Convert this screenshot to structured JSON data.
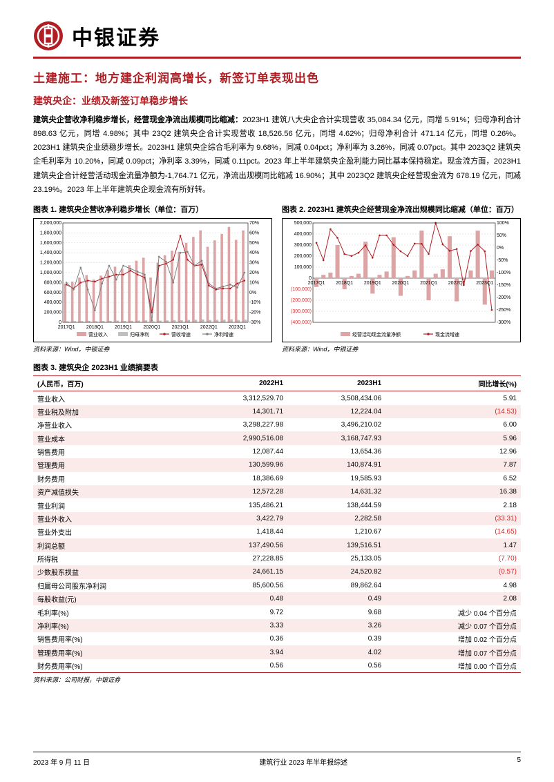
{
  "header": {
    "company": "中银证券"
  },
  "title": "土建施工：地方建企利润高增长，新签订单表现出色",
  "subtitle": "建筑央企：业绩及新签订单稳步增长",
  "body_bold": "建筑央企营收净利稳步增长，经营现金净流出规模同比缩减：",
  "body_rest": "2023H1 建筑八大央企合计实现营收 35,084.34 亿元，同增 5.91%；归母净利合计 898.63 亿元，同增 4.98%；其中 23Q2 建筑央企合计实现营收 18,526.56 亿元，同增 4.62%；归母净利合计 471.14 亿元，同增 0.26%。2023H1 建筑央企业绩稳步增长。2023H1 建筑央企综合毛利率为 9.68%，同减 0.04pct；净利率为 3.26%，同减 0.07pct。其中 2023Q2 建筑央企毛利率为 10.20%，同减 0.09pct；净利率 3.39%，同减 0.11pct。2023 年上半年建筑央企盈利能力同比基本保持稳定。现金流方面，2023H1 建筑央企合计经营活动现金流量净额为-1,764.71 亿元，净流出规模同比缩减 16.90%；其中 2023Q2 建筑央企经营现金流为 678.19 亿元，同减 23.19%。2023 年上半年建筑央企现金流有所好转。",
  "chart1": {
    "title": "图表 1. 建筑央企营收净利稳步增长（单位：百万）",
    "x_categories": [
      "2017Q1",
      "2018Q1",
      "2019Q1",
      "2020Q1",
      "2021Q1",
      "2022Q1",
      "2023Q1"
    ],
    "left_y_ticks": [
      0,
      200000,
      400000,
      600000,
      800000,
      1000000,
      1200000,
      1400000,
      1600000,
      1800000,
      2000000
    ],
    "right_y_ticks": [
      -30,
      -20,
      -10,
      0,
      10,
      20,
      30,
      40,
      50,
      60,
      70
    ],
    "bar_pair_colors": [
      "#dca4a4",
      "#bfbfbf"
    ],
    "line_colors": [
      "#b01e24",
      "#808080"
    ],
    "series_bar1": [
      780000,
      820000,
      900000,
      950000,
      860000,
      940000,
      1050000,
      1120000,
      1080000,
      1150000,
      1240000,
      1300000,
      900000,
      1200000,
      1350000,
      1440000,
      1420000,
      1600000,
      1720000,
      1850000,
      1520000,
      1650000,
      1780000,
      1920000,
      1660000,
      1850000
    ],
    "series_bar2": [
      20000,
      23000,
      26000,
      30000,
      22000,
      25000,
      29000,
      34000,
      28000,
      31000,
      35000,
      40000,
      20000,
      34000,
      38000,
      44000,
      42000,
      48000,
      52000,
      58000,
      46000,
      50000,
      55000,
      62000,
      48000,
      54000
    ],
    "series_line1": [
      8,
      4,
      10,
      12,
      11,
      14,
      16,
      18,
      18,
      22,
      18,
      15,
      -20,
      27,
      29,
      33,
      57,
      33,
      27,
      28,
      7,
      3,
      4,
      4,
      9,
      12
    ],
    "series_line2": [
      10,
      3,
      25,
      3,
      -18,
      9,
      27,
      13,
      27,
      24,
      21,
      18,
      -28,
      36,
      31,
      10,
      40,
      41,
      27,
      32,
      9,
      4,
      6,
      8,
      5,
      20
    ],
    "legend": [
      "营业收入",
      "归母净利",
      "营收增速",
      "净利增速"
    ],
    "font_size": 7
  },
  "chart2": {
    "title": "图表 2. 2023H1 建筑央企经营现金净流出规模同比缩减（单位：百万）",
    "x_categories": [
      "2017Q1",
      "2018Q1",
      "2019Q1",
      "2020Q1",
      "2021Q1",
      "2022Q1",
      "2023Q1"
    ],
    "left_y_ticks": [
      -400000,
      -300000,
      -200000,
      -100000,
      0,
      100000,
      200000,
      300000,
      400000,
      500000
    ],
    "right_y_ticks": [
      -300,
      -250,
      -200,
      -150,
      -100,
      -50,
      0,
      50,
      100
    ],
    "bar_color": "#dca4a4",
    "line_color": "#b01e24",
    "series_bar": [
      -80000,
      30000,
      50000,
      300000,
      -100000,
      20000,
      40000,
      330000,
      -140000,
      30000,
      60000,
      370000,
      -160000,
      20000,
      70000,
      430000,
      -200000,
      40000,
      80000,
      380000,
      -210000,
      -20000,
      70000,
      430000,
      -240000,
      70000
    ],
    "series_line": [
      20,
      -50,
      75,
      40,
      -25,
      -33,
      -20,
      10,
      -40,
      50,
      50,
      12,
      -14,
      -33,
      17,
      16,
      -25,
      100,
      14,
      -12,
      -5,
      -150,
      -13,
      13,
      -14,
      -250
    ],
    "legend": [
      "经营活动现金流量净额",
      "现金流增速"
    ],
    "font_size": 7
  },
  "table3": {
    "title": "图表 3. 建筑央企 2023H1 业绩摘要表",
    "headers": [
      "(人民币，百万)",
      "2022H1",
      "2023H1",
      "同比增长(%)"
    ],
    "rows": [
      [
        "营业收入",
        "3,312,529.70",
        "3,508,434.06",
        "5.91"
      ],
      [
        "营业税及附加",
        "14,301.71",
        "12,224.04",
        "(14.53)"
      ],
      [
        "净营业收入",
        "3,298,227.98",
        "3,496,210.02",
        "6.00"
      ],
      [
        "营业成本",
        "2,990,516.08",
        "3,168,747.93",
        "5.96"
      ],
      [
        "销售费用",
        "12,087.44",
        "13,654.36",
        "12.96"
      ],
      [
        "管理费用",
        "130,599.96",
        "140,874.91",
        "7.87"
      ],
      [
        "财务费用",
        "18,386.69",
        "19,585.93",
        "6.52"
      ],
      [
        "资产减值损失",
        "12,572.28",
        "14,631.32",
        "16.38"
      ],
      [
        "营业利润",
        "135,486.21",
        "138,444.59",
        "2.18"
      ],
      [
        "营业外收入",
        "3,422.79",
        "2,282.58",
        "(33.31)"
      ],
      [
        "营业外支出",
        "1,418.44",
        "1,210.67",
        "(14.65)"
      ],
      [
        "利润总额",
        "137,490.56",
        "139,516.51",
        "1.47"
      ],
      [
        "所得税",
        "27,228.85",
        "25,133.05",
        "(7.70)"
      ],
      [
        "少数股东损益",
        "24,661.15",
        "24,520.82",
        "(0.57)"
      ],
      [
        "归属母公司股东净利润",
        "85,600.56",
        "89,862.64",
        "4.98"
      ],
      [
        "每股收益(元)",
        "0.48",
        "0.49",
        "2.08"
      ],
      [
        "毛利率(%)",
        "9.72",
        "9.68",
        "减少 0.04 个百分点"
      ],
      [
        "净利率(%)",
        "3.33",
        "3.26",
        "减少 0.07 个百分点"
      ],
      [
        "销售费用率(%)",
        "0.36",
        "0.39",
        "增加 0.02 个百分点"
      ],
      [
        "管理费用率(%)",
        "3.94",
        "4.02",
        "增加 0.07 个百分点"
      ],
      [
        "财务费用率(%)",
        "0.56",
        "0.56",
        "增加 0.00 个百分点"
      ]
    ],
    "neg_rows": [
      1,
      9,
      10,
      12,
      13
    ]
  },
  "source_wind": "资料来源：Wind，中银证券",
  "source_company": "资料来源：公司财报，中银证券",
  "footer": {
    "date": "2023 年 9 月 11 日",
    "center": "建筑行业 2023 年半年报综述",
    "page": "5"
  },
  "colors": {
    "brand_red": "#b01e24",
    "table_stripe": "#fbeaea",
    "neg_text": "#d92b2b"
  }
}
